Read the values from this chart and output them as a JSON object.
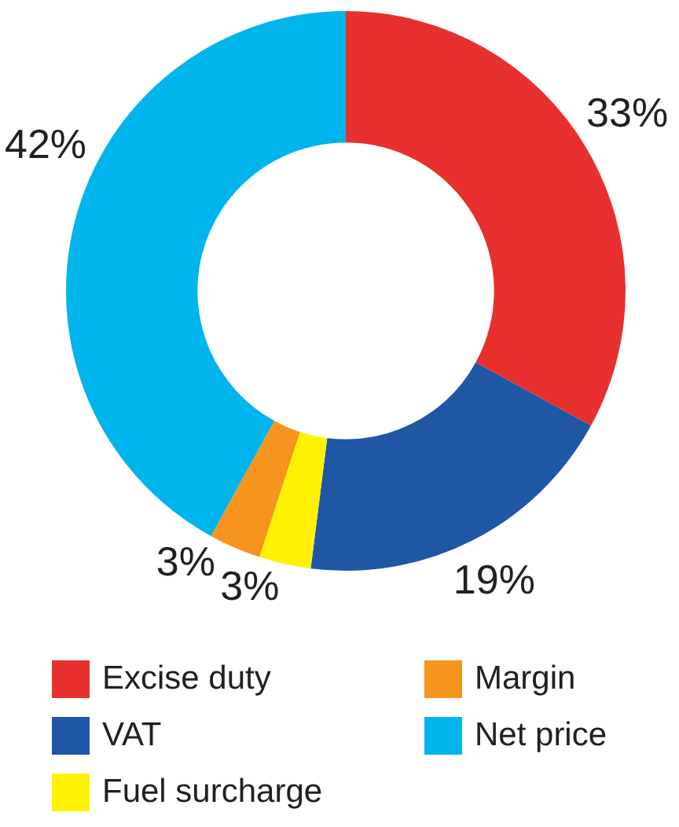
{
  "chart_data": {
    "type": "donut",
    "categories": [
      "Excise duty",
      "VAT",
      "Fuel surcharge",
      "Margin",
      "Net price"
    ],
    "values": [
      33,
      19,
      3,
      3,
      42
    ],
    "value_labels": [
      "33%",
      "19%",
      "3%",
      "3%",
      "42%"
    ],
    "colors": [
      "#e8312f",
      "#1f57a5",
      "#fff200",
      "#f7941d",
      "#00b4ec"
    ],
    "legend": "bottom"
  }
}
